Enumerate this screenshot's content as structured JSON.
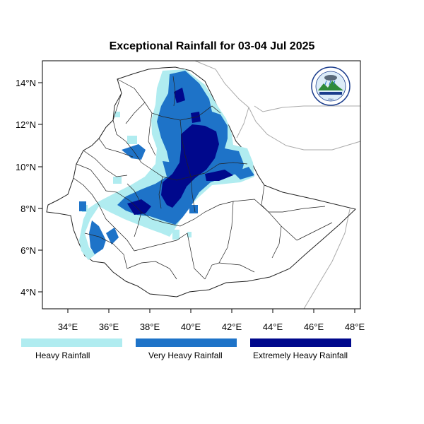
{
  "title": "Exceptional Rainfall for 03-04 Jul 2025",
  "x_ticks": [
    "34°E",
    "36°E",
    "38°E",
    "40°E",
    "42°E",
    "44°E",
    "46°E",
    "48°E"
  ],
  "y_ticks": [
    "14°N",
    "12°N",
    "10°N",
    "8°N",
    "6°N",
    "4°N"
  ],
  "legend": [
    {
      "label": "Heavy Rainfall",
      "color": "#b0ecf0"
    },
    {
      "label": "Very Heavy Rainfall",
      "color": "#1e73c8"
    },
    {
      "label": "Extremely Heavy Rainfall",
      "color": "#00088c"
    }
  ],
  "logo": {
    "name": "meteorology-institute-logo-icon",
    "caption": "EMI"
  }
}
